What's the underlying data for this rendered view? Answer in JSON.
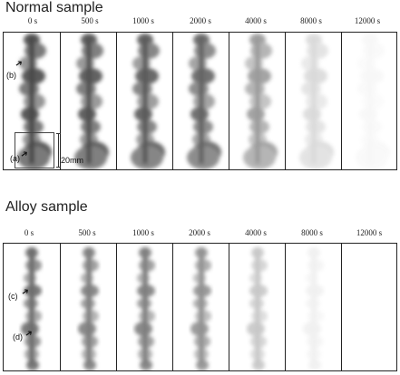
{
  "normal": {
    "title": "Normal sample",
    "times": [
      "0 s",
      "500 s",
      "1000 s",
      "2000 s",
      "4000 s",
      "8000 s",
      "12000 s"
    ],
    "opacities": [
      1.0,
      0.95,
      0.9,
      0.85,
      0.55,
      0.2,
      0.04
    ],
    "annotations": {
      "b": "(b)",
      "a": "(a)",
      "scale": "20mm"
    }
  },
  "alloy": {
    "title": "Alloy sample",
    "times": [
      "0 s",
      "500 s",
      "1000 s",
      "2000 s",
      "4000 s",
      "8000 s",
      "12000 s"
    ],
    "opacities": [
      0.8,
      0.7,
      0.7,
      0.6,
      0.3,
      0.08,
      0.0
    ],
    "annotations": {
      "c": "(c)",
      "d": "(d)"
    }
  }
}
